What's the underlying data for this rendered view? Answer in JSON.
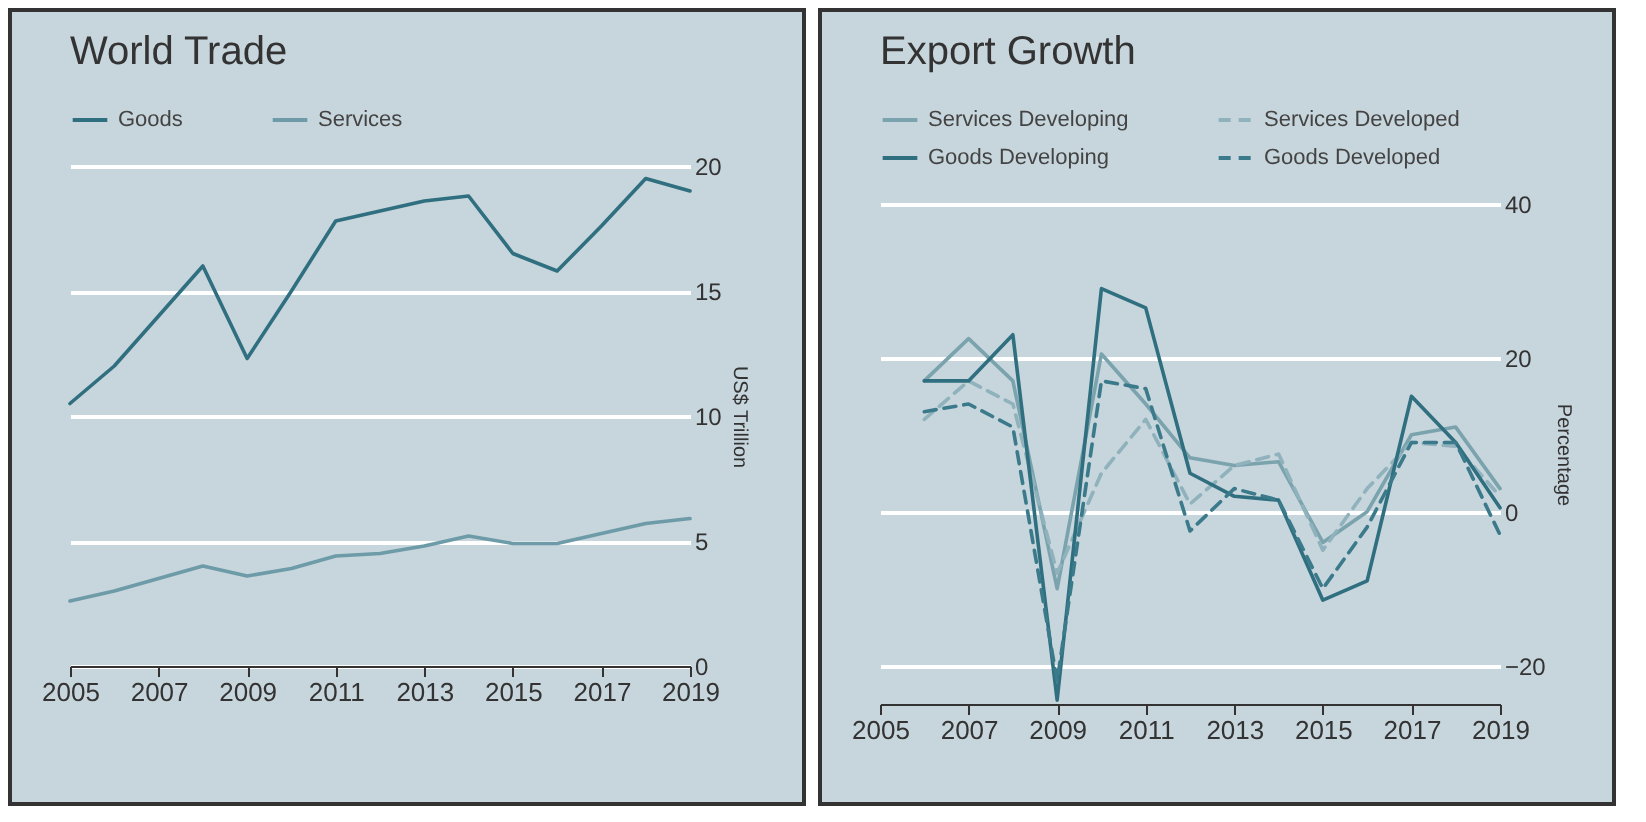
{
  "chart_data": [
    {
      "type": "line",
      "title": "World Trade",
      "ylabel": "US$ Trillion",
      "x": [
        2005,
        2006,
        2007,
        2008,
        2009,
        2010,
        2011,
        2012,
        2013,
        2014,
        2015,
        2016,
        2017,
        2018,
        2019
      ],
      "xlim": [
        2005,
        2019
      ],
      "xticks": [
        2005,
        2007,
        2009,
        2011,
        2013,
        2015,
        2017,
        2019
      ],
      "ylim": [
        0,
        20
      ],
      "yticks": [
        0,
        5,
        10,
        15,
        20
      ],
      "grid": "y",
      "legend": "top",
      "series": [
        {
          "name": "Goods",
          "color": "#2f6f7f",
          "line_style": "solid",
          "values": [
            10.5,
            12,
            14,
            16,
            12.3,
            15,
            17.8,
            18.2,
            18.6,
            18.8,
            16.5,
            15.8,
            17.6,
            19.5,
            19.0
          ]
        },
        {
          "name": "Services",
          "color": "#6d9ba8",
          "line_style": "solid",
          "values": [
            2.6,
            3.0,
            3.5,
            4.0,
            3.6,
            3.9,
            4.4,
            4.5,
            4.8,
            5.2,
            4.9,
            4.9,
            5.3,
            5.7,
            5.9
          ]
        }
      ]
    },
    {
      "type": "line",
      "title": "Export Growth",
      "ylabel": "Percentage",
      "x": [
        2006,
        2007,
        2008,
        2009,
        2010,
        2011,
        2012,
        2013,
        2014,
        2015,
        2016,
        2017,
        2018,
        2019
      ],
      "xlim": [
        2005,
        2019
      ],
      "xticks": [
        2005,
        2007,
        2009,
        2011,
        2013,
        2015,
        2017,
        2019
      ],
      "ylim": [
        -25,
        40
      ],
      "yticks": [
        -20,
        0,
        20,
        40
      ],
      "grid": "y",
      "legend": "top",
      "series": [
        {
          "name": "Services Developing",
          "color": "#7aa3ae",
          "line_style": "solid",
          "values": [
            17,
            22.5,
            17,
            -10,
            20.5,
            14,
            7,
            6,
            6.5,
            -4,
            0,
            10,
            11,
            3
          ]
        },
        {
          "name": "Services Developed",
          "color": "#8fb2bc",
          "line_style": "dashed",
          "values": [
            12,
            17,
            14,
            -8,
            5,
            12,
            1,
            6,
            7.5,
            -5,
            3,
            9,
            8.5,
            2
          ]
        },
        {
          "name": "Goods Developing",
          "color": "#2f6f7f",
          "line_style": "solid",
          "values": [
            17,
            17,
            23,
            -24.5,
            29,
            26.5,
            5,
            2,
            1.5,
            -11.5,
            -9,
            15,
            9,
            0.5
          ]
        },
        {
          "name": "Goods Developed",
          "color": "#3a7a8a",
          "line_style": "dashed",
          "values": [
            13,
            14,
            11,
            -22,
            17,
            16,
            -2.5,
            3,
            1.5,
            -10,
            -2,
            9,
            9,
            -3
          ]
        }
      ]
    }
  ]
}
